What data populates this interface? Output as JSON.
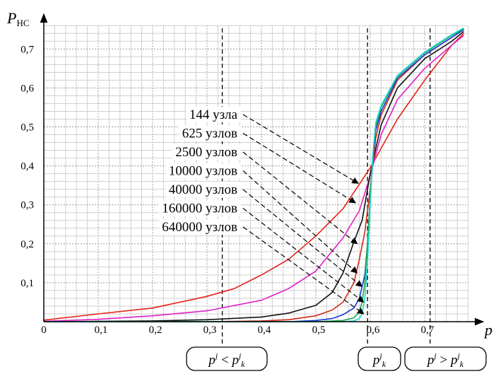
{
  "chart_data": {
    "type": "line",
    "xlabel": "p",
    "ylabel_main": "P",
    "ylabel_sub": "НС",
    "xlim": [
      0,
      0.78
    ],
    "ylim": [
      0,
      0.76
    ],
    "grid": true,
    "x_ticks": [
      0,
      0.1,
      0.2,
      0.3,
      0.4,
      0.5,
      0.6,
      0.7
    ],
    "x_tick_labels": [
      "0",
      "0,1",
      "0,2",
      "0,3",
      "0,4",
      "0,5",
      "0,6",
      "0,7"
    ],
    "y_ticks": [
      0.1,
      0.2,
      0.3,
      0.4,
      0.5,
      0.6,
      0.7
    ],
    "y_tick_labels": [
      "0,1",
      "0,2",
      "0,3",
      "0,4",
      "0,5",
      "0,6",
      "0,7"
    ],
    "vertical_markers": [
      0.328,
      0.595,
      0.71
    ],
    "series": [
      {
        "name": "144 узла",
        "color": "#e8201a",
        "arrow_target": [
          0.578,
          0.355
        ],
        "points": [
          [
            0,
            0.004
          ],
          [
            0.1,
            0.02
          ],
          [
            0.2,
            0.035
          ],
          [
            0.3,
            0.065
          ],
          [
            0.35,
            0.085
          ],
          [
            0.4,
            0.12
          ],
          [
            0.45,
            0.16
          ],
          [
            0.5,
            0.22
          ],
          [
            0.55,
            0.29
          ],
          [
            0.6,
            0.395
          ],
          [
            0.65,
            0.52
          ],
          [
            0.7,
            0.62
          ],
          [
            0.75,
            0.71
          ],
          [
            0.772,
            0.74
          ]
        ]
      },
      {
        "name": "625 узлов",
        "color": "#e020c8",
        "arrow_target": [
          0.573,
          0.305
        ],
        "points": [
          [
            0,
            0.001
          ],
          [
            0.1,
            0.006
          ],
          [
            0.2,
            0.015
          ],
          [
            0.3,
            0.028
          ],
          [
            0.4,
            0.055
          ],
          [
            0.45,
            0.085
          ],
          [
            0.5,
            0.13
          ],
          [
            0.55,
            0.215
          ],
          [
            0.58,
            0.285
          ],
          [
            0.6,
            0.375
          ],
          [
            0.62,
            0.48
          ],
          [
            0.65,
            0.57
          ],
          [
            0.7,
            0.65
          ],
          [
            0.75,
            0.71
          ],
          [
            0.772,
            0.735
          ]
        ]
      },
      {
        "name": "2500 узлов",
        "color": "#111111",
        "arrow_target": [
          0.576,
          0.2
        ],
        "points": [
          [
            0,
            0
          ],
          [
            0.2,
            0.002
          ],
          [
            0.3,
            0.005
          ],
          [
            0.4,
            0.012
          ],
          [
            0.45,
            0.022
          ],
          [
            0.5,
            0.042
          ],
          [
            0.53,
            0.075
          ],
          [
            0.55,
            0.125
          ],
          [
            0.57,
            0.205
          ],
          [
            0.585,
            0.26
          ],
          [
            0.6,
            0.38
          ],
          [
            0.62,
            0.505
          ],
          [
            0.65,
            0.6
          ],
          [
            0.7,
            0.675
          ],
          [
            0.75,
            0.72
          ],
          [
            0.772,
            0.745
          ]
        ]
      },
      {
        "name": "10000 узлов",
        "color": "#d12a1a",
        "arrow_target": [
          0.576,
          0.125
        ],
        "points": [
          [
            0,
            0
          ],
          [
            0.3,
            0
          ],
          [
            0.4,
            0.002
          ],
          [
            0.45,
            0.005
          ],
          [
            0.5,
            0.015
          ],
          [
            0.53,
            0.03
          ],
          [
            0.55,
            0.05
          ],
          [
            0.57,
            0.1
          ],
          [
            0.58,
            0.16
          ],
          [
            0.59,
            0.23
          ],
          [
            0.6,
            0.34
          ],
          [
            0.61,
            0.47
          ],
          [
            0.62,
            0.53
          ],
          [
            0.65,
            0.62
          ],
          [
            0.7,
            0.685
          ],
          [
            0.75,
            0.73
          ],
          [
            0.772,
            0.75
          ]
        ]
      },
      {
        "name": "40000 узлов",
        "color": "#1838d8",
        "arrow_target": [
          0.585,
          0.09
        ],
        "points": [
          [
            0,
            0
          ],
          [
            0.45,
            0
          ],
          [
            0.5,
            0.003
          ],
          [
            0.53,
            0.008
          ],
          [
            0.55,
            0.018
          ],
          [
            0.57,
            0.035
          ],
          [
            0.58,
            0.06
          ],
          [
            0.59,
            0.12
          ],
          [
            0.595,
            0.2
          ],
          [
            0.6,
            0.32
          ],
          [
            0.605,
            0.42
          ],
          [
            0.61,
            0.49
          ],
          [
            0.62,
            0.54
          ],
          [
            0.65,
            0.625
          ],
          [
            0.7,
            0.685
          ],
          [
            0.75,
            0.73
          ],
          [
            0.772,
            0.75
          ]
        ]
      },
      {
        "name": "160000 узлов",
        "color": "#18a848",
        "arrow_target": [
          0.588,
          0.05
        ],
        "points": [
          [
            0,
            0
          ],
          [
            0.5,
            0
          ],
          [
            0.55,
            0.003
          ],
          [
            0.57,
            0.01
          ],
          [
            0.58,
            0.025
          ],
          [
            0.585,
            0.05
          ],
          [
            0.59,
            0.1
          ],
          [
            0.595,
            0.2
          ],
          [
            0.6,
            0.32
          ],
          [
            0.605,
            0.43
          ],
          [
            0.61,
            0.5
          ],
          [
            0.62,
            0.55
          ],
          [
            0.65,
            0.63
          ],
          [
            0.7,
            0.69
          ],
          [
            0.75,
            0.735
          ],
          [
            0.772,
            0.752
          ]
        ]
      },
      {
        "name": "640000 узлов",
        "color": "#18d8d0",
        "arrow_target": [
          0.588,
          0.02
        ],
        "points": [
          [
            0,
            0
          ],
          [
            0.55,
            0
          ],
          [
            0.57,
            0.002
          ],
          [
            0.58,
            0.008
          ],
          [
            0.585,
            0.02
          ],
          [
            0.59,
            0.06
          ],
          [
            0.595,
            0.15
          ],
          [
            0.6,
            0.3
          ],
          [
            0.605,
            0.43
          ],
          [
            0.61,
            0.51
          ],
          [
            0.62,
            0.555
          ],
          [
            0.65,
            0.632
          ],
          [
            0.7,
            0.692
          ],
          [
            0.75,
            0.737
          ],
          [
            0.772,
            0.754
          ]
        ]
      }
    ],
    "regions": [
      {
        "main": "p",
        "sup": "j",
        "rel": " < ",
        "main2": "p",
        "sup2": "j",
        "sub2": "k"
      },
      {
        "main": "p",
        "sup": "j",
        "sub": "k"
      },
      {
        "main": "p",
        "sup": "j",
        "rel": " > ",
        "main2": "p",
        "sup2": "j",
        "sub2": "k"
      }
    ]
  }
}
